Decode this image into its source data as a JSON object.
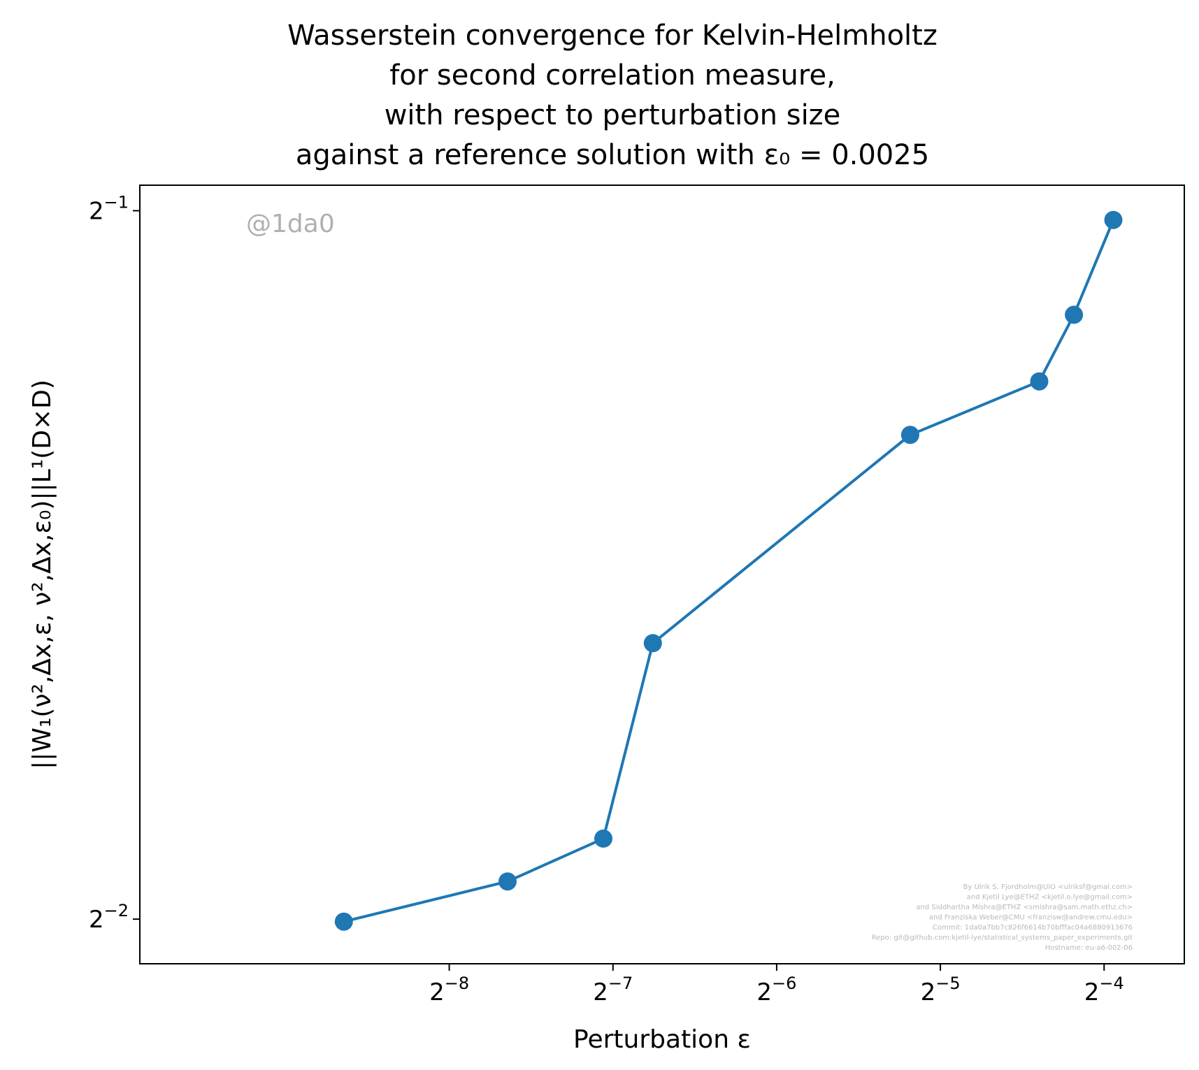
{
  "chart_data": {
    "type": "line",
    "title_lines": [
      "Wasserstein convergence for Kelvin-Helmholtz",
      "for second correlation measure,",
      "with respect to perturbation size",
      "against a reference solution with ε₀ = 0.0025"
    ],
    "xlabel": "Perturbation ε",
    "ylabel": "||W₁(ν²,Δx,ε, ν²,Δx,ε₀)||L¹(D×D)",
    "x_scale": "log2",
    "y_scale": "log2",
    "xlim_log2": [
      -9.89,
      -3.51
    ],
    "ylim_log2": [
      -2.063,
      -0.964
    ],
    "x_ticks": [
      {
        "base": "2",
        "exp": "−8",
        "log2": -8
      },
      {
        "base": "2",
        "exp": "−7",
        "log2": -7
      },
      {
        "base": "2",
        "exp": "−6",
        "log2": -6
      },
      {
        "base": "2",
        "exp": "−5",
        "log2": -5
      },
      {
        "base": "2",
        "exp": "−4",
        "log2": -4
      }
    ],
    "y_ticks": [
      {
        "base": "2",
        "exp": "−1",
        "log2": -1
      },
      {
        "base": "2",
        "exp": "−2",
        "log2": -2
      }
    ],
    "series": [
      {
        "color": "#1f77b4",
        "x": [
          0.0025,
          0.005,
          0.0075,
          0.00925,
          0.0275,
          0.0475,
          0.055,
          0.065
        ],
        "y": [
          0.2494,
          0.2594,
          0.2705,
          0.3275,
          0.4015,
          0.4231,
          0.4516,
          0.4955
        ]
      }
    ],
    "grid": false,
    "legend": "none"
  },
  "watermark": "@1da0",
  "credits": [
    "By Ulrik S. Fjordholm@UiO <ulriksf@gmal.com>",
    "and Kjetil Lye@ETHZ <kjetil.o.lye@gmail.com>",
    "and Siddhartha Mishra@ETHZ <smishra@sam.math.ethz.ch>",
    "and Franziska Weber@CMU <franzisw@andrew.cmu.edu>",
    "Commit: 1da0a7bb7c826f6614b70bfffac04a6880913676",
    "Repo: git@github.com:kjetil-lye/statistical_systems_paper_experiments.git",
    "Hostname: eu-a6-002-06"
  ]
}
